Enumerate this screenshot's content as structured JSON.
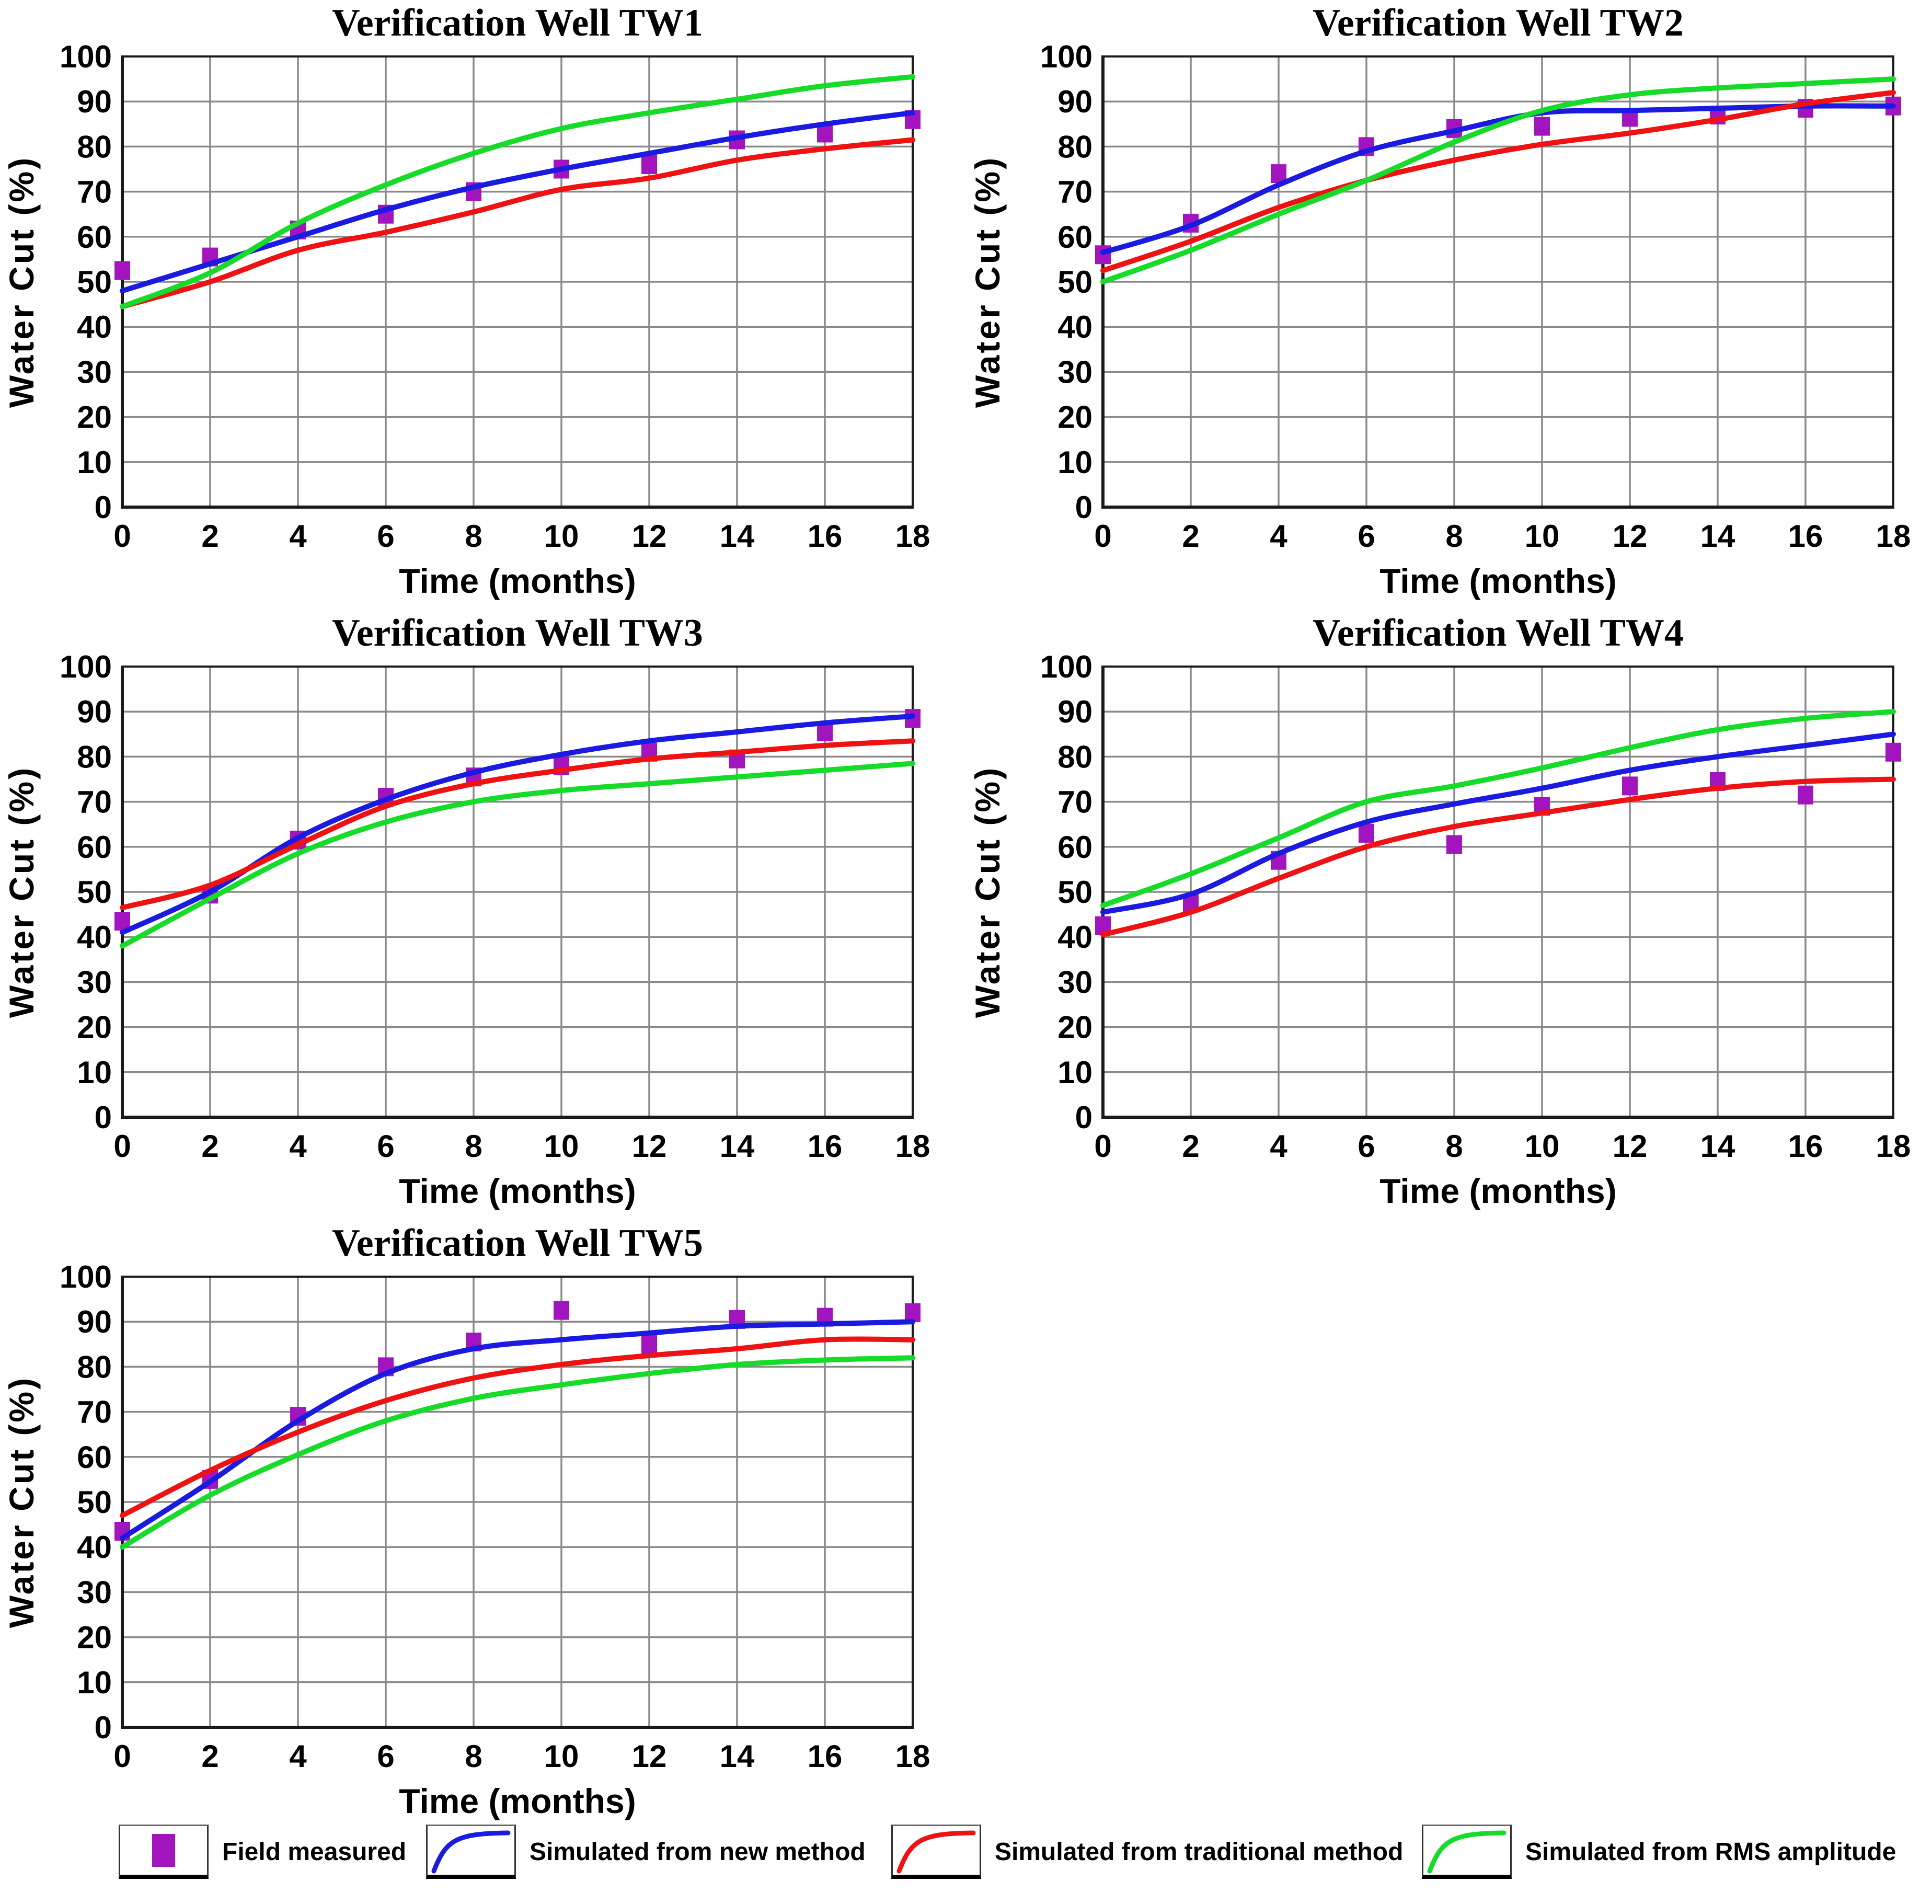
{
  "page": {
    "background": "#ffffff"
  },
  "colors": {
    "field": "#A214BE",
    "new": "#1A1AE0",
    "traditional": "#EE1212",
    "rms": "#16DB28",
    "grid": "#8a8a8a",
    "axis": "#1a1a1a",
    "text": "#000000"
  },
  "legend": {
    "items": [
      {
        "label": "Field measured",
        "swatch": "square",
        "color_key": "field"
      },
      {
        "label": "Simulated from new method",
        "swatch": "curve",
        "color_key": "new"
      },
      {
        "label": "Simulated from traditional method",
        "swatch": "curve",
        "color_key": "traditional"
      },
      {
        "label": "Simulated from RMS amplitude",
        "swatch": "curve",
        "color_key": "rms"
      }
    ]
  },
  "chart_data": [
    {
      "type": "line",
      "title": "Verification Well  TW1",
      "xlabel": "Time (months)",
      "ylabel": "Water Cut (%)",
      "xlim": [
        0,
        18
      ],
      "ylim": [
        0,
        100
      ],
      "xtick_step": 2,
      "ytick_step": 10,
      "grid": true,
      "x": [
        0,
        2,
        4,
        6,
        8,
        10,
        12,
        14,
        16,
        18
      ],
      "series": [
        {
          "name": "Field measured",
          "style": "scatter-square",
          "color_key": "field",
          "values": [
            52.5,
            55.5,
            61.5,
            65,
            70,
            75,
            76,
            81.5,
            83,
            86
          ]
        },
        {
          "name": "Simulated from new method",
          "style": "line",
          "color_key": "new",
          "values": [
            48,
            54,
            60,
            66,
            71,
            75,
            78.5,
            82,
            85,
            87.5
          ]
        },
        {
          "name": "Simulated from traditional method",
          "style": "line",
          "color_key": "traditional",
          "values": [
            44.5,
            50,
            57,
            61,
            65.5,
            70.5,
            73,
            77,
            79.5,
            81.5
          ]
        },
        {
          "name": "Simulated from RMS amplitude",
          "style": "line",
          "color_key": "rms",
          "values": [
            44.5,
            52,
            63,
            71.5,
            78.5,
            84,
            87.5,
            90.5,
            93.5,
            95.5
          ]
        }
      ]
    },
    {
      "type": "line",
      "title": "Verification Well  TW2",
      "xlabel": "Time (months)",
      "ylabel": "Water Cut (%)",
      "xlim": [
        0,
        18
      ],
      "ylim": [
        0,
        100
      ],
      "xtick_step": 2,
      "ytick_step": 10,
      "grid": true,
      "x": [
        0,
        2,
        4,
        6,
        8,
        10,
        12,
        14,
        16,
        18
      ],
      "series": [
        {
          "name": "Field measured",
          "style": "scatter-square",
          "color_key": "field",
          "values": [
            56,
            63,
            74,
            80,
            84,
            84.5,
            86.5,
            87,
            88.5,
            89
          ]
        },
        {
          "name": "Simulated from new method",
          "style": "line",
          "color_key": "new",
          "values": [
            56.5,
            62.5,
            71.5,
            79,
            83.5,
            87.5,
            88,
            88.5,
            89,
            89
          ]
        },
        {
          "name": "Simulated from traditional method",
          "style": "line",
          "color_key": "traditional",
          "values": [
            52.5,
            59,
            66.5,
            72.5,
            77,
            80.5,
            83,
            86,
            89.5,
            92
          ]
        },
        {
          "name": "Simulated from RMS amplitude",
          "style": "line",
          "color_key": "rms",
          "values": [
            50,
            57,
            65,
            72.5,
            81,
            88,
            91.5,
            93,
            94,
            95
          ]
        }
      ]
    },
    {
      "type": "line",
      "title": "Verification Well  TW3",
      "xlabel": "Time (months)",
      "ylabel": "Water Cut (%)",
      "xlim": [
        0,
        18
      ],
      "ylim": [
        0,
        100
      ],
      "xtick_step": 2,
      "ytick_step": 10,
      "grid": true,
      "x": [
        0,
        2,
        4,
        6,
        8,
        10,
        12,
        14,
        16,
        18
      ],
      "series": [
        {
          "name": "Field measured",
          "style": "scatter-square",
          "color_key": "field",
          "values": [
            43.5,
            49.5,
            61.5,
            71,
            75.5,
            78,
            81,
            79.5,
            85.5,
            88.5
          ]
        },
        {
          "name": "Simulated from new method",
          "style": "line",
          "color_key": "new",
          "values": [
            41,
            50,
            62,
            70.5,
            76.5,
            80.5,
            83.5,
            85.5,
            87.5,
            89
          ]
        },
        {
          "name": "Simulated from traditional method",
          "style": "line",
          "color_key": "traditional",
          "values": [
            46.5,
            51.5,
            60.5,
            69,
            74,
            77,
            79.5,
            81,
            82.5,
            83.5
          ]
        },
        {
          "name": "Simulated from RMS amplitude",
          "style": "line",
          "color_key": "rms",
          "values": [
            38,
            48.5,
            58.5,
            65.5,
            70,
            72.5,
            74,
            75.5,
            77,
            78.5
          ]
        }
      ]
    },
    {
      "type": "line",
      "title": "Verification Well  TW4",
      "xlabel": "Time (months)",
      "ylabel": "Water Cut (%)",
      "xlim": [
        0,
        18
      ],
      "ylim": [
        0,
        100
      ],
      "xtick_step": 2,
      "ytick_step": 10,
      "grid": true,
      "x": [
        0,
        2,
        4,
        6,
        8,
        10,
        12,
        14,
        16,
        18
      ],
      "series": [
        {
          "name": "Field measured",
          "style": "scatter-square",
          "color_key": "field",
          "values": [
            42.5,
            47.5,
            57,
            63,
            60.5,
            69,
            73.5,
            74.5,
            71.5,
            81
          ]
        },
        {
          "name": "Simulated from new method",
          "style": "line",
          "color_key": "new",
          "values": [
            45.5,
            49.5,
            58.5,
            65.5,
            69.5,
            73,
            77,
            80,
            82.5,
            85
          ]
        },
        {
          "name": "Simulated from traditional method",
          "style": "line",
          "color_key": "traditional",
          "values": [
            40.5,
            45.5,
            53,
            60,
            64.5,
            67.5,
            70.5,
            73,
            74.5,
            75
          ]
        },
        {
          "name": "Simulated from RMS amplitude",
          "style": "line",
          "color_key": "rms",
          "values": [
            47,
            54,
            62,
            70,
            73.5,
            77.5,
            82,
            86,
            88.5,
            90
          ]
        }
      ]
    },
    {
      "type": "line",
      "title": "Verification Well  TW5",
      "xlabel": "Time (months)",
      "ylabel": "Water Cut (%)",
      "xlim": [
        0,
        18
      ],
      "ylim": [
        0,
        100
      ],
      "xtick_step": 2,
      "ytick_step": 10,
      "grid": true,
      "x": [
        0,
        2,
        4,
        6,
        8,
        10,
        12,
        14,
        16,
        18
      ],
      "series": [
        {
          "name": "Field measured",
          "style": "scatter-square",
          "color_key": "field",
          "values": [
            43.5,
            55,
            69,
            80,
            85.5,
            92.5,
            85,
            90.5,
            91,
            92
          ]
        },
        {
          "name": "Simulated from new method",
          "style": "line",
          "color_key": "new",
          "values": [
            42,
            54.5,
            68,
            78.5,
            84,
            86,
            87.5,
            89,
            89.5,
            90
          ]
        },
        {
          "name": "Simulated from traditional method",
          "style": "line",
          "color_key": "traditional",
          "values": [
            47,
            57,
            65.5,
            72.5,
            77.5,
            80.5,
            82.5,
            84,
            86,
            86
          ]
        },
        {
          "name": "Simulated from RMS amplitude",
          "style": "line",
          "color_key": "rms",
          "values": [
            40,
            51.5,
            60.5,
            68,
            73,
            76,
            78.5,
            80.5,
            81.5,
            82
          ]
        }
      ]
    }
  ]
}
